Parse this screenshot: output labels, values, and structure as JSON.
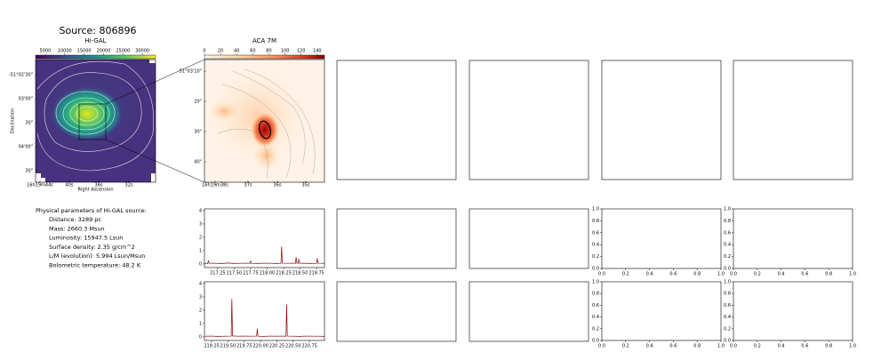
{
  "title": "Source: 806896",
  "parameters": {
    "heading": "Physical parameters of Hi-GAL source:",
    "lines": [
      "Distance: 3289 pc",
      "Mass: 2660.3 Msun",
      "Luminosity: 15947.5 Lsun",
      "Surface density: 2.35 g/cm^2",
      "L/M (evolution): 5.994 Lsun/Msun",
      "Bolometric temperature: 48.2 K"
    ]
  },
  "chart_data": [
    {
      "type": "image",
      "title": "Hi-GAL",
      "colormap": "viridis",
      "colorbar_lim": [
        2500,
        33400
      ],
      "colorbar_ticks": [
        5000,
        10000,
        15000,
        20000,
        25000,
        30000
      ],
      "xlabel": "Right Ascension",
      "ylabel": "Declination",
      "x_tick_labels": [
        "16h19m44s",
        "40s",
        "36s",
        "32s"
      ],
      "y_tick_labels": [
        "-51°02'30\"",
        "03'00\"",
        "30\"",
        "04'00\"",
        "30\""
      ]
    },
    {
      "type": "image",
      "title": "ACA 7M",
      "colormap": "OrRd",
      "colorbar_lim": [
        0,
        149
      ],
      "colorbar_ticks": [
        0,
        20,
        40,
        60,
        80,
        100,
        120,
        140
      ],
      "x_tick_labels": [
        "16h19m38s",
        "37s",
        "36s",
        "35s"
      ],
      "y_tick_labels": [
        "-51°03'10\"",
        "20\"",
        "30\"",
        "40\""
      ]
    },
    {
      "type": "line",
      "color": "#8b0000",
      "x": [
        217.05,
        217.1,
        217.11,
        217.12,
        217.2,
        217.3,
        217.4,
        217.5,
        217.6,
        217.7,
        217.74,
        217.75,
        217.76,
        217.85,
        217.95,
        218.05,
        218.15,
        218.21,
        218.22,
        218.23,
        218.3,
        218.38,
        218.43,
        218.44,
        218.45,
        218.47,
        218.48,
        218.49,
        218.55,
        218.65,
        218.75,
        218.76,
        218.77,
        218.85,
        218.87
      ],
      "values": [
        0.05,
        0.04,
        0.25,
        0.05,
        0.06,
        0.03,
        0.07,
        0.04,
        0.05,
        0.06,
        0.05,
        0.22,
        0.05,
        0.04,
        0.06,
        0.05,
        0.04,
        0.05,
        1.3,
        0.06,
        0.05,
        0.06,
        0.05,
        0.52,
        0.06,
        0.05,
        0.38,
        0.05,
        0.06,
        0.04,
        0.05,
        0.42,
        0.06,
        0.05,
        0.04
      ],
      "xlim": [
        217.05,
        218.87
      ],
      "ylim": [
        -0.27,
        4.13
      ],
      "xticks": [
        217.25,
        {
          "value": 217.5,
          "label": "217.50"
        },
        217.75,
        {
          "value": 218.0,
          "label": "218.00"
        },
        218.25,
        {
          "value": 218.5,
          "label": "218.50"
        },
        218.75
      ],
      "yticks": [
        0,
        1,
        2,
        3,
        4
      ]
    },
    {
      "type": "line",
      "color": "#8b0000",
      "x": [
        219.14,
        219.25,
        219.35,
        219.45,
        219.55,
        219.56,
        219.57,
        219.65,
        219.75,
        219.85,
        219.94,
        219.95,
        219.96,
        220.05,
        220.15,
        220.25,
        220.35,
        220.39,
        220.4,
        220.41,
        220.5,
        220.6,
        220.7,
        220.8,
        220.9,
        220.98
      ],
      "values": [
        0.05,
        0.06,
        0.04,
        0.05,
        0.06,
        2.85,
        0.07,
        0.05,
        0.06,
        0.05,
        0.06,
        0.62,
        0.05,
        0.04,
        0.06,
        0.05,
        0.06,
        0.05,
        2.45,
        0.06,
        0.05,
        0.04,
        0.06,
        0.05,
        0.05,
        0.04
      ],
      "xlim": [
        219.14,
        220.98
      ],
      "ylim": [
        -0.27,
        4.13
      ],
      "xticks": [
        219.25,
        {
          "value": 219.5,
          "label": "219.50"
        },
        219.75,
        {
          "value": 220.0,
          "label": "220.00"
        },
        220.25,
        {
          "value": 220.5,
          "label": "220.50"
        },
        220.75
      ],
      "yticks": [
        0,
        1,
        2,
        3,
        4
      ]
    },
    {
      "type": "empty",
      "xlim": [
        0,
        1
      ],
      "ylim": [
        0,
        1
      ],
      "xticks": [
        {
          "value": 0,
          "label": "0.0"
        },
        0.2,
        0.4,
        0.6,
        0.8,
        {
          "value": 1,
          "label": "1.0"
        }
      ],
      "yticks": [
        {
          "value": 0,
          "label": "0.0"
        },
        0.2,
        0.4,
        0.6,
        0.8,
        {
          "value": 1,
          "label": "1.0"
        }
      ]
    },
    {
      "type": "empty",
      "xlim": [
        0,
        1
      ],
      "ylim": [
        0,
        1
      ],
      "xticks": [
        {
          "value": 0,
          "label": "0.0"
        },
        0.2,
        0.4,
        0.6,
        0.8,
        {
          "value": 1,
          "label": "1.0"
        }
      ],
      "yticks": [
        {
          "value": 0,
          "label": "0.0"
        },
        0.2,
        0.4,
        0.6,
        0.8,
        {
          "value": 1,
          "label": "1.0"
        }
      ]
    },
    {
      "type": "empty",
      "xlim": [
        0,
        1
      ],
      "ylim": [
        0,
        1
      ],
      "xticks": [
        {
          "value": 0,
          "label": "0.0"
        },
        0.2,
        0.4,
        0.6,
        0.8,
        {
          "value": 1,
          "label": "1.0"
        }
      ],
      "yticks": [
        {
          "value": 0,
          "label": "0.0"
        },
        0.2,
        0.4,
        0.6,
        0.8,
        {
          "value": 1,
          "label": "1.0"
        }
      ]
    },
    {
      "type": "empty",
      "xlim": [
        0,
        1
      ],
      "ylim": [
        0,
        1
      ],
      "xticks": [
        {
          "value": 0,
          "label": "0.0"
        },
        0.2,
        0.4,
        0.6,
        0.8,
        {
          "value": 1,
          "label": "1.0"
        }
      ],
      "yticks": [
        {
          "value": 0,
          "label": "0.0"
        },
        0.2,
        0.4,
        0.6,
        0.8,
        {
          "value": 1,
          "label": "1.0"
        }
      ]
    }
  ]
}
